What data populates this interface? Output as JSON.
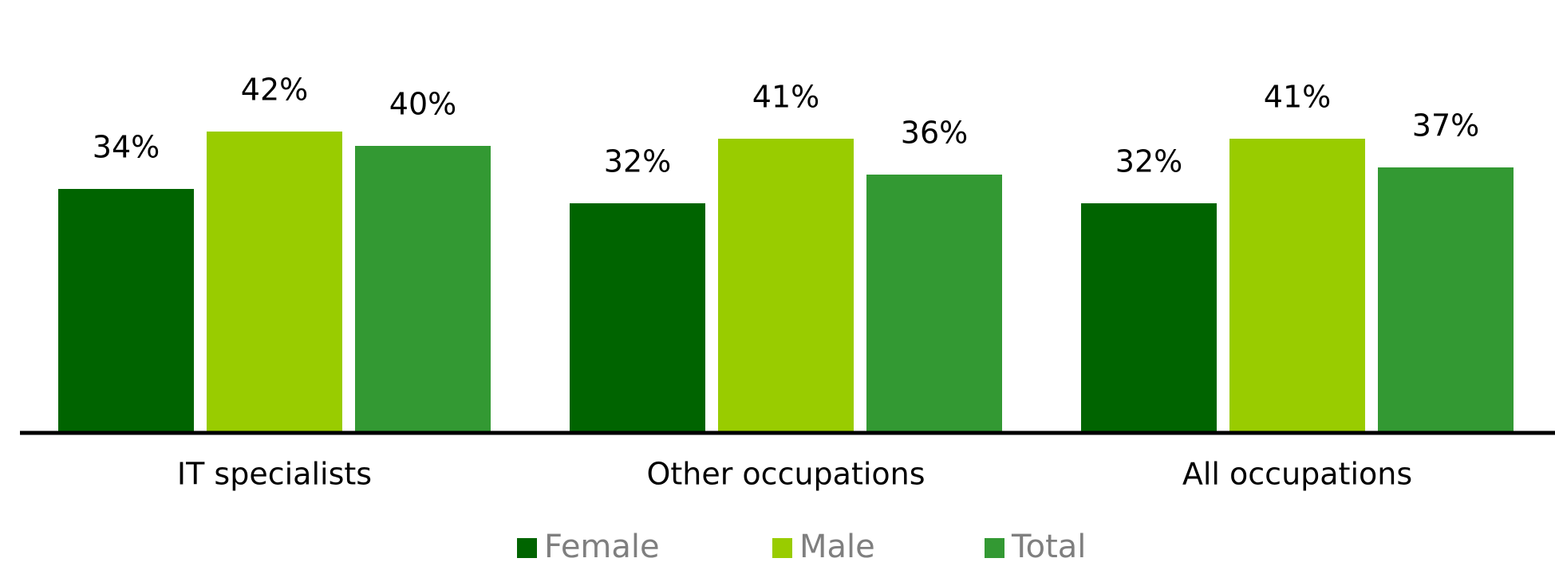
{
  "chart_data": {
    "type": "bar",
    "categories": [
      "IT specialists",
      "Other occupations",
      "All occupations"
    ],
    "series": [
      {
        "name": "Female",
        "color": "#006400",
        "values": [
          34,
          32,
          32
        ],
        "value_labels": [
          "34%",
          "32%",
          "32%"
        ]
      },
      {
        "name": "Male",
        "color": "#99cc00",
        "values": [
          42,
          41,
          41
        ],
        "value_labels": [
          "42%",
          "41%",
          "41%"
        ]
      },
      {
        "name": "Total",
        "color": "#339933",
        "values": [
          40,
          36,
          37
        ],
        "value_labels": [
          "40%",
          "36%",
          "37%"
        ]
      }
    ]
  }
}
